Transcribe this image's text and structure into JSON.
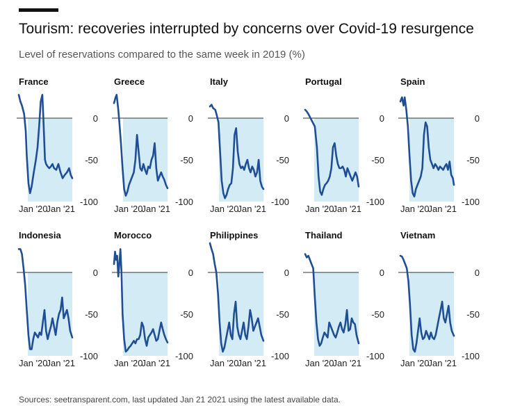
{
  "header": {
    "title": "Tourism: recoveries interrupted by concerns over Covid-19 resurgence",
    "subtitle": "Level of reservations compared to the same week in 2019 (%)"
  },
  "footer": {
    "source": "Sources: seetransparent.com, last updated Jan 21 2021 using the latest available data."
  },
  "colors": {
    "line": "#1f4e96",
    "fill": "#d2ebf4",
    "zero_line": "#333333",
    "tick_text": "#222222"
  },
  "chart_data": {
    "type": "line",
    "layout": "small-multiples",
    "x_ticks": [
      "Jan '20",
      "Jan '21"
    ],
    "y_ticks": [
      0,
      -50,
      -100
    ],
    "ylim": [
      -100,
      35
    ],
    "x_domain": [
      0,
      1
    ],
    "shaded_region": {
      "from_x": 0.17,
      "to_x": 1.0,
      "from_y": -100,
      "to_y": 0
    },
    "panels": [
      {
        "name": "France",
        "x": [
          0,
          0.03,
          0.06,
          0.1,
          0.13,
          0.15,
          0.18,
          0.21,
          0.24,
          0.28,
          0.32,
          0.35,
          0.38,
          0.41,
          0.44,
          0.46,
          0.49,
          0.51,
          0.54,
          0.57,
          0.6,
          0.63,
          0.66,
          0.7,
          0.74,
          0.78,
          0.82,
          0.86,
          0.9,
          0.94,
          0.97,
          1
        ],
        "y": [
          28,
          20,
          15,
          5,
          -15,
          -45,
          -78,
          -90,
          -82,
          -65,
          -50,
          -35,
          -10,
          20,
          28,
          0,
          -50,
          -55,
          -58,
          -60,
          -58,
          -55,
          -60,
          -62,
          -55,
          -65,
          -72,
          -68,
          -65,
          -60,
          -68,
          -72
        ]
      },
      {
        "name": "Greece",
        "x": [
          0,
          0.03,
          0.05,
          0.08,
          0.1,
          0.13,
          0.16,
          0.19,
          0.22,
          0.25,
          0.28,
          0.31,
          0.34,
          0.37,
          0.4,
          0.43,
          0.46,
          0.49,
          0.52,
          0.55,
          0.58,
          0.61,
          0.64,
          0.67,
          0.7,
          0.73,
          0.76,
          0.79,
          0.82,
          0.85,
          0.88,
          0.91,
          0.94,
          0.97,
          1
        ],
        "y": [
          18,
          25,
          28,
          10,
          -5,
          -30,
          -60,
          -85,
          -93,
          -88,
          -80,
          -75,
          -70,
          -65,
          -50,
          -20,
          -40,
          -60,
          -63,
          -55,
          -62,
          -67,
          -58,
          -60,
          -50,
          -45,
          -30,
          -60,
          -75,
          -70,
          -65,
          -70,
          -74,
          -80,
          -84
        ]
      },
      {
        "name": "Italy",
        "x": [
          0,
          0.03,
          0.06,
          0.1,
          0.13,
          0.16,
          0.19,
          0.22,
          0.25,
          0.28,
          0.31,
          0.34,
          0.37,
          0.4,
          0.43,
          0.46,
          0.49,
          0.52,
          0.55,
          0.58,
          0.61,
          0.64,
          0.67,
          0.7,
          0.73,
          0.76,
          0.79,
          0.82,
          0.85,
          0.88,
          0.91,
          0.94,
          0.97,
          1
        ],
        "y": [
          14,
          16,
          12,
          10,
          3,
          -5,
          -40,
          -75,
          -90,
          -96,
          -92,
          -85,
          -80,
          -78,
          -60,
          -20,
          -12,
          -40,
          -55,
          -60,
          -58,
          -62,
          -55,
          -50,
          -60,
          -65,
          -58,
          -62,
          -70,
          -65,
          -50,
          -75,
          -82,
          -85
        ]
      },
      {
        "name": "Portugal",
        "x": [
          0,
          0.03,
          0.06,
          0.1,
          0.14,
          0.18,
          0.22,
          0.25,
          0.28,
          0.31,
          0.34,
          0.37,
          0.4,
          0.43,
          0.46,
          0.49,
          0.52,
          0.55,
          0.58,
          0.61,
          0.64,
          0.67,
          0.7,
          0.73,
          0.76,
          0.79,
          0.82,
          0.85,
          0.88,
          0.91,
          0.94,
          0.97,
          1
        ],
        "y": [
          10,
          8,
          5,
          0,
          -5,
          -10,
          -35,
          -70,
          -88,
          -92,
          -85,
          -80,
          -78,
          -75,
          -70,
          -60,
          -35,
          -30,
          -45,
          -55,
          -60,
          -60,
          -58,
          -62,
          -70,
          -60,
          -65,
          -70,
          -75,
          -70,
          -65,
          -70,
          -82
        ]
      },
      {
        "name": "Spain",
        "x": [
          0,
          0.03,
          0.06,
          0.08,
          0.11,
          0.14,
          0.17,
          0.2,
          0.23,
          0.26,
          0.29,
          0.32,
          0.35,
          0.38,
          0.41,
          0.44,
          0.47,
          0.5,
          0.53,
          0.56,
          0.59,
          0.62,
          0.65,
          0.68,
          0.71,
          0.74,
          0.77,
          0.8,
          0.83,
          0.86,
          0.89,
          0.92,
          0.95,
          0.98,
          1
        ],
        "y": [
          20,
          25,
          15,
          25,
          10,
          -10,
          -45,
          -75,
          -90,
          -94,
          -85,
          -80,
          -75,
          -70,
          -60,
          -20,
          -5,
          -10,
          -35,
          -50,
          -55,
          -60,
          -55,
          -58,
          -62,
          -58,
          -60,
          -62,
          -58,
          -55,
          -62,
          -52,
          -68,
          -72,
          -80
        ]
      },
      {
        "name": "Indonesia",
        "x": [
          0,
          0.03,
          0.06,
          0.09,
          0.12,
          0.15,
          0.18,
          0.21,
          0.24,
          0.27,
          0.3,
          0.33,
          0.36,
          0.39,
          0.42,
          0.45,
          0.48,
          0.51,
          0.54,
          0.57,
          0.6,
          0.63,
          0.66,
          0.69,
          0.72,
          0.75,
          0.78,
          0.81,
          0.84,
          0.87,
          0.9,
          0.93,
          0.96,
          1
        ],
        "y": [
          28,
          28,
          22,
          5,
          -15,
          -45,
          -75,
          -92,
          -92,
          -80,
          -72,
          -75,
          -78,
          -72,
          -75,
          -60,
          -45,
          -70,
          -80,
          -72,
          -65,
          -55,
          -65,
          -75,
          -60,
          -50,
          -45,
          -30,
          -55,
          -50,
          -45,
          -55,
          -70,
          -78
        ]
      },
      {
        "name": "Morocco",
        "x": [
          0,
          0.02,
          0.04,
          0.06,
          0.08,
          0.1,
          0.12,
          0.14,
          0.16,
          0.19,
          0.22,
          0.25,
          0.28,
          0.31,
          0.34,
          0.37,
          0.4,
          0.43,
          0.46,
          0.49,
          0.52,
          0.55,
          0.58,
          0.61,
          0.64,
          0.67,
          0.7,
          0.73,
          0.76,
          0.79,
          0.82,
          0.85,
          0.88,
          0.91,
          0.94,
          0.97,
          1
        ],
        "y": [
          10,
          25,
          15,
          20,
          -5,
          10,
          28,
          0,
          -50,
          -80,
          -95,
          -93,
          -90,
          -88,
          -85,
          -82,
          -85,
          -80,
          -80,
          -75,
          -60,
          -65,
          -80,
          -88,
          -78,
          -75,
          -72,
          -68,
          -75,
          -82,
          -80,
          -70,
          -60,
          -68,
          -75,
          -80,
          -84
        ]
      },
      {
        "name": "Philippines",
        "x": [
          0,
          0.03,
          0.06,
          0.09,
          0.12,
          0.15,
          0.18,
          0.21,
          0.24,
          0.27,
          0.3,
          0.33,
          0.36,
          0.39,
          0.42,
          0.45,
          0.48,
          0.51,
          0.54,
          0.57,
          0.6,
          0.63,
          0.66,
          0.69,
          0.72,
          0.75,
          0.78,
          0.81,
          0.84,
          0.87,
          0.9,
          0.93,
          0.96,
          1
        ],
        "y": [
          35,
          28,
          22,
          10,
          0,
          -25,
          -60,
          -85,
          -95,
          -90,
          -80,
          -70,
          -60,
          -75,
          -80,
          -50,
          -35,
          -65,
          -75,
          -80,
          -70,
          -60,
          -75,
          -80,
          -65,
          -45,
          -55,
          -70,
          -65,
          -60,
          -55,
          -65,
          -75,
          -82
        ]
      },
      {
        "name": "Thailand",
        "x": [
          0,
          0.03,
          0.06,
          0.09,
          0.12,
          0.15,
          0.18,
          0.21,
          0.24,
          0.27,
          0.3,
          0.33,
          0.36,
          0.39,
          0.42,
          0.45,
          0.48,
          0.51,
          0.54,
          0.57,
          0.6,
          0.63,
          0.66,
          0.69,
          0.72,
          0.75,
          0.78,
          0.81,
          0.84,
          0.87,
          0.9,
          0.93,
          0.96,
          1
        ],
        "y": [
          22,
          18,
          20,
          15,
          10,
          5,
          -30,
          -60,
          -80,
          -88,
          -85,
          -78,
          -72,
          -75,
          -78,
          -60,
          -65,
          -70,
          -75,
          -78,
          -72,
          -65,
          -60,
          -68,
          -72,
          -62,
          -45,
          -70,
          -68,
          -55,
          -60,
          -62,
          -75,
          -85
        ]
      },
      {
        "name": "Vietnam",
        "x": [
          0,
          0.03,
          0.06,
          0.09,
          0.12,
          0.15,
          0.18,
          0.21,
          0.24,
          0.27,
          0.3,
          0.33,
          0.36,
          0.39,
          0.42,
          0.45,
          0.48,
          0.51,
          0.54,
          0.57,
          0.6,
          0.63,
          0.66,
          0.69,
          0.72,
          0.75,
          0.78,
          0.81,
          0.84,
          0.87,
          0.9,
          0.93,
          0.96,
          1
        ],
        "y": [
          20,
          19,
          15,
          10,
          5,
          -10,
          -40,
          -75,
          -92,
          -95,
          -85,
          -70,
          -55,
          -72,
          -80,
          -78,
          -70,
          -75,
          -80,
          -72,
          -78,
          -80,
          -75,
          -65,
          -55,
          -45,
          -35,
          -55,
          -60,
          -50,
          -40,
          -60,
          -70,
          -76
        ]
      }
    ]
  }
}
